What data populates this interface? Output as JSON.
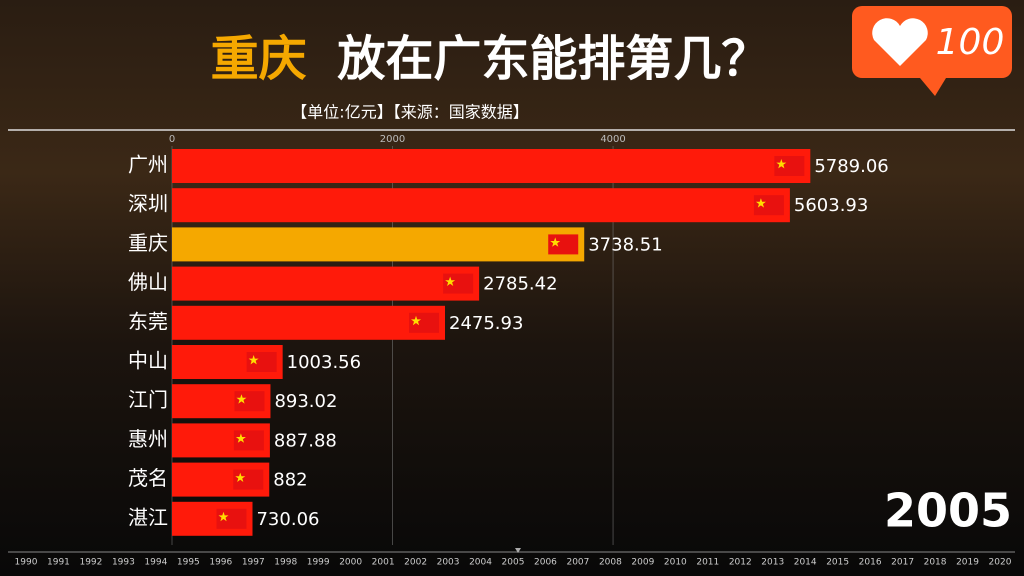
{
  "chart_data": {
    "type": "bar",
    "orientation": "horizontal",
    "title_parts": [
      "重庆",
      "放在广东能排第几？"
    ],
    "subtitle": "【单位:亿元】【来源：国家数据】",
    "categories": [
      "广州",
      "深圳",
      "重庆",
      "佛山",
      "东莞",
      "中山",
      "江门",
      "惠州",
      "茂名",
      "湛江"
    ],
    "values": [
      5789.06,
      5603.93,
      3738.51,
      2785.42,
      2475.93,
      1003.56,
      893.02,
      887.88,
      882,
      730.06
    ],
    "colors": [
      "#ff1a0a",
      "#ff1a0a",
      "#f5a800",
      "#ff1a0a",
      "#ff1a0a",
      "#ff1a0a",
      "#ff1a0a",
      "#ff1a0a",
      "#ff1a0a",
      "#ff1a0a"
    ],
    "xlim": [
      0,
      7600
    ],
    "xticks": [
      0,
      2000,
      4000
    ],
    "grid": true,
    "year": 2005,
    "timeline": [
      1990,
      1991,
      1992,
      1993,
      1994,
      1995,
      1996,
      1997,
      1998,
      1999,
      2000,
      2001,
      2002,
      2003,
      2004,
      2005,
      2006,
      2007,
      2008,
      2009,
      2010,
      2011,
      2012,
      2013,
      2014,
      2015,
      2016,
      2017,
      2018,
      2019,
      2020
    ],
    "badge": 100
  }
}
